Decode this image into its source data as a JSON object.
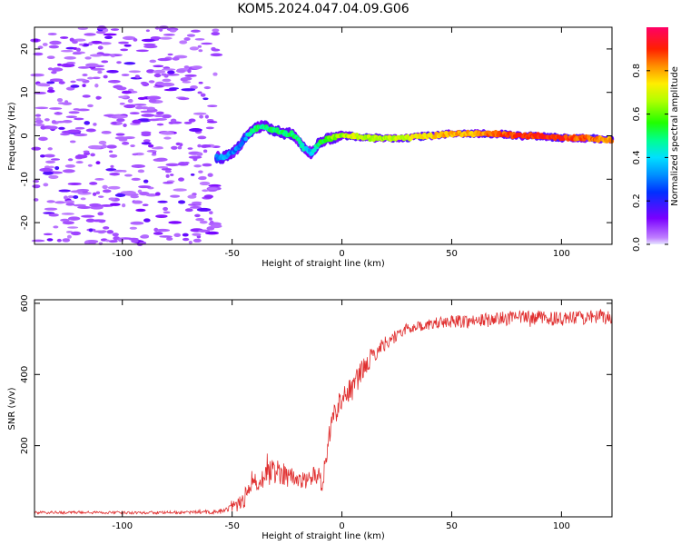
{
  "title": "KOM5.2024.047.04.09.G06",
  "chart_data": [
    {
      "type": "heatmap",
      "xlabel": "Height of straight line (km)",
      "ylabel": "Frequency (Hz)",
      "xlim": [
        -140,
        123
      ],
      "ylim": [
        -25,
        25
      ],
      "x_ticks": [
        -100,
        -50,
        0,
        50,
        100
      ],
      "y_ticks": [
        -20,
        -10,
        0,
        10,
        20
      ],
      "colorbar": {
        "label": "Normalized spectral amplitude",
        "range": [
          0.0,
          1.0
        ],
        "ticks": [
          0.0,
          0.2,
          0.4,
          0.6,
          0.8
        ],
        "tick_labels": [
          "0.0",
          "0.2",
          "0.4",
          "0.6",
          "0.8"
        ],
        "colormap": "gist_rainbow_r",
        "underflow_color": "#ffffff"
      },
      "ridge": {
        "x": [
          -57,
          -54,
          -50,
          -47,
          -44,
          -41,
          -38,
          -35,
          -32,
          -29,
          -26,
          -23,
          -20,
          -17,
          -14,
          -11,
          -8,
          -5,
          -2,
          0,
          5,
          10,
          20,
          30,
          40,
          50,
          60,
          70,
          80,
          90,
          100,
          110,
          123
        ],
        "freq": [
          -5,
          -5,
          -4,
          -2.5,
          -0.5,
          1,
          2,
          2.2,
          1.5,
          1,
          0.5,
          0.5,
          -1,
          -3,
          -4,
          -2,
          -1,
          -0.5,
          -0.2,
          0,
          0,
          -0.5,
          -0.5,
          -0.5,
          0,
          0.5,
          0.5,
          0.5,
          0,
          0,
          -0.5,
          -0.5,
          -1
        ],
        "amplitude": [
          0.3,
          0.35,
          0.3,
          0.3,
          0.3,
          0.5,
          0.5,
          0.5,
          0.5,
          0.5,
          0.5,
          0.5,
          0.5,
          0.45,
          0.35,
          0.5,
          0.55,
          0.6,
          0.65,
          0.65,
          0.7,
          0.65,
          0.65,
          0.7,
          0.75,
          0.8,
          0.8,
          0.85,
          0.9,
          0.9,
          0.9,
          0.85,
          0.8
        ],
        "note_noise_region_x": [
          -140,
          -57
        ]
      }
    },
    {
      "type": "line",
      "xlabel": "Height of straight line (km)",
      "ylabel": "SNR (v/v)",
      "xlim": [
        -140,
        123
      ],
      "ylim": [
        0,
        610
      ],
      "x_ticks": [
        -100,
        -50,
        0,
        50,
        100
      ],
      "y_ticks": [
        200,
        400,
        600
      ],
      "series": [
        {
          "color": "#e03030",
          "x": [
            -140,
            -120,
            -100,
            -80,
            -60,
            -55,
            -50,
            -45,
            -40,
            -35,
            -30,
            -25,
            -20,
            -15,
            -10,
            -9,
            -8,
            -5,
            0,
            5,
            10,
            15,
            20,
            25,
            30,
            40,
            50,
            60,
            70,
            80,
            90,
            100,
            110,
            123
          ],
          "y": [
            12,
            12,
            12,
            12,
            13,
            15,
            25,
            45,
            90,
            120,
            130,
            120,
            100,
            110,
            120,
            60,
            140,
            260,
            340,
            360,
            420,
            460,
            490,
            510,
            530,
            540,
            550,
            550,
            555,
            560,
            560,
            555,
            560,
            560
          ],
          "noise_amplitude": [
            4,
            4,
            4,
            4,
            5,
            8,
            15,
            25,
            30,
            35,
            35,
            35,
            25,
            25,
            25,
            20,
            25,
            35,
            35,
            35,
            30,
            25,
            20,
            18,
            15,
            15,
            18,
            20,
            20,
            20,
            20,
            20,
            20,
            20
          ]
        }
      ]
    }
  ]
}
